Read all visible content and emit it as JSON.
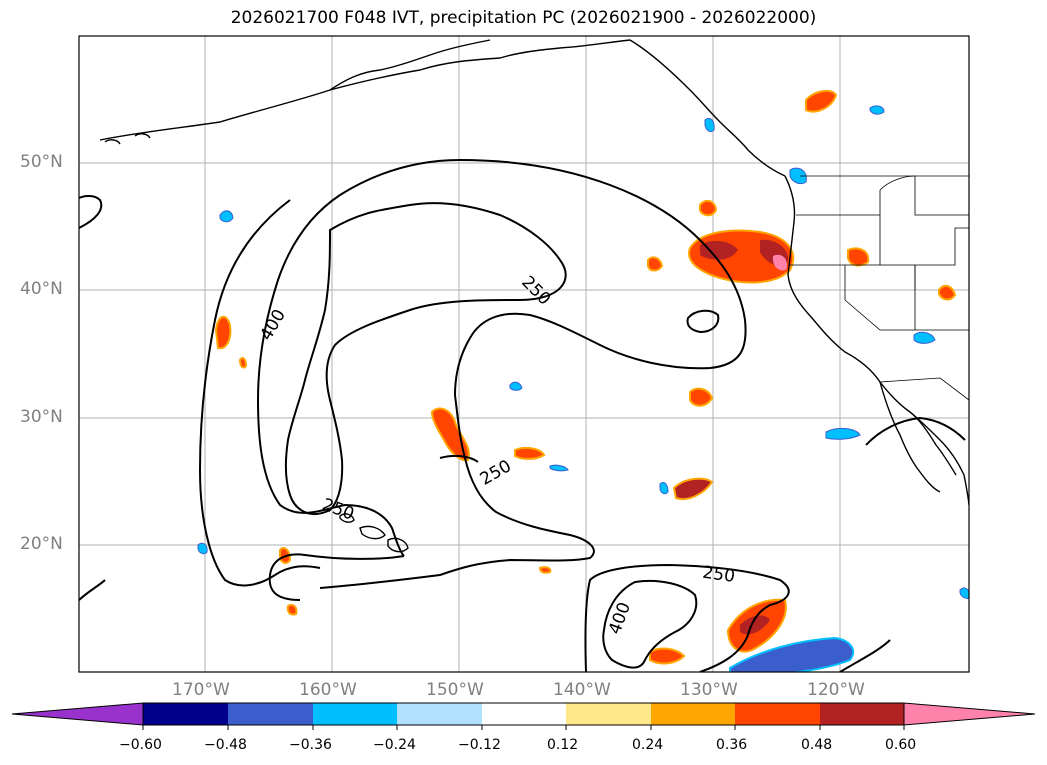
{
  "title": "2026021700 F048 IVT, precipitation PC (2026021900 - 2026022000)",
  "lat_labels": [
    "50°N",
    "40°N",
    "30°N",
    "20°N"
  ],
  "lon_labels": [
    "170°W",
    "160°W",
    "150°W",
    "140°W",
    "130°W",
    "120°W"
  ],
  "contour_labels": [
    "250",
    "250",
    "400",
    "250",
    "250",
    "400"
  ],
  "colorbar": {
    "ticks": [
      "−0.60",
      "−0.48",
      "−0.36",
      "−0.24",
      "−0.12",
      "0.12",
      "0.24",
      "0.36",
      "0.48",
      "0.60"
    ],
    "colors": [
      "#9932cc",
      "#00008b",
      "#3a5fcd",
      "#00bfff",
      "#b0e2ff",
      "#ffffff",
      "#ffe88c",
      "#ffa500",
      "#ff4500",
      "#b22222",
      "#ff82ab"
    ]
  }
}
